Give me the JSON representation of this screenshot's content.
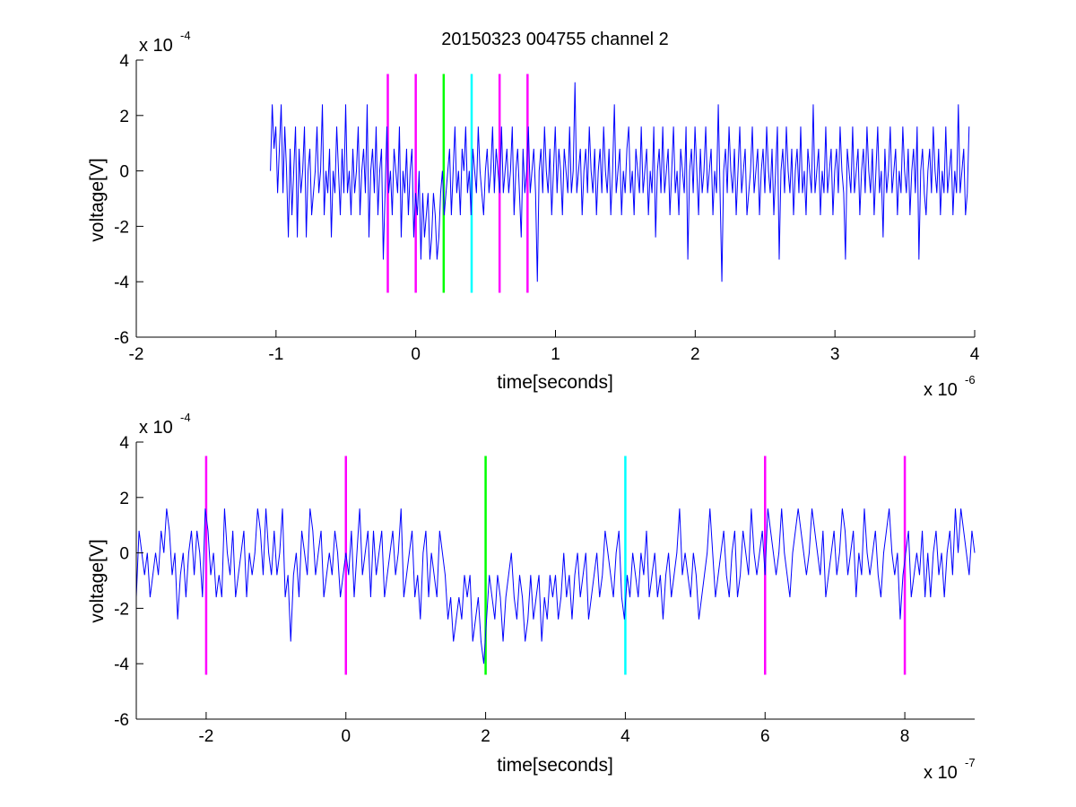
{
  "chart_data": [
    {
      "type": "line",
      "title": "20150323 004755 channel 2",
      "xlabel": "time[seconds]",
      "ylabel": "voltage[V]",
      "x_multiplier": {
        "base": "x 10",
        "exponent": "-6"
      },
      "y_multiplier": {
        "base": "x 10",
        "exponent": "-4"
      },
      "xlim": [
        -2,
        4
      ],
      "ylim": [
        -6,
        4
      ],
      "x_ticks": [
        -2,
        -1,
        0,
        1,
        2,
        3,
        4
      ],
      "y_ticks": [
        -6,
        -4,
        -2,
        0,
        2,
        4
      ],
      "grid": false,
      "series": [
        {
          "color": "#0000ff",
          "x_range": [
            -1.04,
            3.96
          ],
          "quantization_step": 0.8,
          "values": [
            0,
            2.4,
            0.8,
            1.6,
            -0.8,
            0.8,
            2.4,
            -0.8,
            1.6,
            0,
            -2.4,
            0.8,
            -1.6,
            0,
            1.6,
            -2.4,
            0.8,
            -0.8,
            0,
            1.6,
            -2.4,
            0,
            0.8,
            -1.6,
            -0.8,
            0,
            1.6,
            -0.8,
            0,
            2.4,
            -1.6,
            0,
            -0.8,
            0.8,
            -2.4,
            0,
            -0.8,
            1.6,
            0,
            -1.6,
            0.8,
            -0.8,
            2.4,
            -0.8,
            0,
            -1.6,
            0.8,
            -0.8,
            0,
            1.6,
            -1.6,
            0,
            0.8,
            -0.8,
            2.4,
            -2.4,
            0,
            0.8,
            -0.8,
            1.6,
            -1.6,
            0,
            0.8,
            -3.2,
            -0.8,
            1.6,
            -0.8,
            0,
            -1.6,
            0.8,
            0,
            -0.8,
            1.6,
            -2.4,
            0,
            -0.8,
            0.8,
            -1.6,
            0,
            0.8,
            -2.4,
            -0.8,
            -1.6,
            0,
            -3.2,
            -0.8,
            -2.4,
            -1.6,
            -0.8,
            -3.2,
            -2.4,
            -0.8,
            -1.6,
            -3.2,
            -2.4,
            -0.8,
            0,
            -1.6,
            -0.8,
            0,
            0.8,
            -1.6,
            0,
            1.6,
            -0.8,
            0,
            -1.6,
            0.8,
            0,
            1.6,
            -0.8,
            0,
            -1.6,
            0.8,
            0,
            -0.8,
            1.6,
            0,
            -0.8,
            -1.6,
            0,
            0.8,
            -0.8,
            0,
            1.6,
            -0.8,
            0.8,
            0,
            -0.8,
            1.6,
            -0.8,
            0,
            0.8,
            -0.8,
            0,
            1.6,
            -1.6,
            0,
            0.8,
            -0.8,
            -2.4,
            0.8,
            -0.8,
            0,
            1.6,
            -0.8,
            0,
            0.8,
            -0.8,
            -4,
            0,
            0.8,
            -0.8,
            1.6,
            0,
            -0.8,
            0.8,
            -1.6,
            0,
            1.6,
            -0.8,
            0.8,
            0,
            -1.6,
            0.8,
            0,
            -0.8,
            1.6,
            -0.8,
            0,
            3.2,
            -0.8,
            0,
            0.8,
            -1.6,
            0,
            0.8,
            -0.8,
            1.6,
            0,
            -0.8,
            0.8,
            -1.6,
            0,
            0.8,
            -0.8,
            1.6,
            0,
            -0.8,
            0.8,
            -1.6,
            0,
            2.4,
            -0.8,
            0,
            0.8,
            -1.6,
            0,
            -0.8,
            0.8,
            1.6,
            -0.8,
            0,
            -1.6,
            0.8,
            0,
            -0.8,
            1.6,
            -0.8,
            0,
            0.8,
            -1.6,
            0,
            -0.8,
            1.6,
            -2.4,
            0,
            0.8,
            -0.8,
            1.6,
            -0.8,
            0,
            0.8,
            -1.6,
            0,
            1.6,
            -0.8,
            0,
            -1.6,
            0.8,
            0,
            -0.8,
            1.6,
            -3.2,
            0,
            0.8,
            -0.8,
            1.6,
            0,
            -1.6,
            0.8,
            -0.8,
            0,
            1.6,
            -0.8,
            0,
            0.8,
            -1.6,
            0,
            -0.8,
            2.4,
            -0.8,
            -4,
            0,
            0.8,
            -0.8,
            1.6,
            0,
            -0.8,
            0.8,
            -1.6,
            0,
            1.6,
            -0.8,
            0,
            0.8,
            -1.6,
            -0.8,
            0,
            1.6,
            -0.8,
            0,
            0.8,
            -1.6,
            0,
            0.8,
            -0.8,
            1.6,
            0,
            -0.8,
            0.8,
            -1.6,
            0,
            1.6,
            -3.2,
            0,
            0.8,
            -0.8,
            1.6,
            0,
            -0.8,
            0.8,
            -1.6,
            0,
            0.8,
            -0.8,
            1.6,
            -0.8,
            0,
            -1.6,
            0.8,
            0,
            -0.8,
            2.4,
            -0.8,
            0,
            0.8,
            -1.6,
            0,
            -0.8,
            1.6,
            -0.8,
            0,
            0.8,
            -1.6,
            0,
            0.8,
            -0.8,
            1.6,
            0,
            -0.8,
            -3.2,
            0.8,
            0,
            -0.8,
            1.6,
            -0.8,
            0,
            0.8,
            -1.6,
            0,
            0.8,
            -0.8,
            1.6,
            0,
            -0.8,
            0.8,
            -1.6,
            0,
            1.6,
            -0.8,
            0,
            -2.4,
            0.8,
            -0.8,
            0,
            1.6,
            -0.8,
            0,
            0.8,
            -1.6,
            0,
            -0.8,
            1.6,
            0,
            -0.8,
            0.8,
            -1.6,
            0,
            0.8,
            -0.8,
            1.6,
            -3.2,
            0,
            0.8,
            -0.8,
            -1.6,
            0,
            0.8,
            -0.8,
            1.6,
            0,
            -0.8,
            0.8,
            -1.6,
            0,
            -0.8,
            1.6,
            -0.8,
            0,
            0.8,
            -1.6,
            0,
            -0.8,
            2.4,
            -0.8,
            0,
            0.8,
            -1.6,
            -0.8,
            1.6
          ]
        }
      ],
      "markers": [
        {
          "x": -0.2,
          "color": "#ff00ff"
        },
        {
          "x": 0.0,
          "color": "#ff00ff"
        },
        {
          "x": 0.2,
          "color": "#00ff00"
        },
        {
          "x": 0.4,
          "color": "#00ffff"
        },
        {
          "x": 0.6,
          "color": "#ff00ff"
        },
        {
          "x": 0.8,
          "color": "#ff00ff"
        }
      ],
      "marker_yrange": [
        -4.4,
        3.5
      ]
    },
    {
      "type": "line",
      "title": "",
      "xlabel": "time[seconds]",
      "ylabel": "voltage[V]",
      "x_multiplier": {
        "base": "x 10",
        "exponent": "-7"
      },
      "y_multiplier": {
        "base": "x 10",
        "exponent": "-4"
      },
      "xlim": [
        -3,
        9
      ],
      "ylim": [
        -6,
        4
      ],
      "x_ticks": [
        -2,
        0,
        2,
        4,
        6,
        8
      ],
      "y_ticks": [
        -6,
        -4,
        -2,
        0,
        2,
        4
      ],
      "grid": false,
      "series": [
        {
          "color": "#0000ff",
          "x_range": [
            -3,
            9
          ],
          "values": [
            -1.6,
            0.8,
            0,
            -0.8,
            0,
            -1.6,
            -0.8,
            0,
            -0.8,
            0.8,
            0,
            1.6,
            0.8,
            -0.8,
            0,
            -2.4,
            -0.8,
            0,
            -1.6,
            0,
            0.8,
            -0.8,
            0.8,
            0,
            -1.6,
            1.6,
            0.8,
            -0.8,
            0,
            -1.6,
            -0.8,
            -1.6,
            1.6,
            0,
            -0.8,
            0.8,
            -1.6,
            -0.8,
            0,
            0.8,
            -1.6,
            0,
            -0.8,
            0,
            1.6,
            0.8,
            -0.8,
            1.6,
            0,
            -0.8,
            0.8,
            -0.8,
            0,
            1.6,
            -1.6,
            -0.8,
            -3.2,
            -0.8,
            0,
            -1.6,
            0.8,
            0,
            -0.8,
            1.6,
            0.8,
            -0.8,
            0,
            0.8,
            -1.6,
            -0.8,
            0,
            -0.8,
            0.8,
            0,
            -1.6,
            -0.8,
            0,
            -0.8,
            0.8,
            -1.6,
            0,
            1.6,
            -0.8,
            0,
            0.8,
            -1.6,
            0.8,
            -0.8,
            0,
            0.8,
            -1.6,
            -0.8,
            0,
            0.8,
            -0.8,
            0,
            1.6,
            -1.6,
            -0.8,
            0,
            0.8,
            -1.6,
            -0.8,
            -2.4,
            0,
            0.8,
            -1.6,
            0,
            -0.8,
            -1.6,
            0.8,
            0,
            -0.8,
            -2.4,
            -1.6,
            -3.2,
            -2.4,
            -1.6,
            -2.4,
            -0.8,
            -1.6,
            -0.8,
            -3.2,
            -2.4,
            -1.6,
            -3.2,
            -4,
            -2.4,
            -0.8,
            -1.6,
            -2.4,
            -0.8,
            -1.6,
            -3.2,
            -1.6,
            -0.8,
            0,
            -1.6,
            -2.4,
            -0.8,
            -1.6,
            -3.2,
            -2.4,
            -0.8,
            -2.4,
            -1.6,
            -0.8,
            -3.2,
            -1.6,
            -2.4,
            -0.8,
            -1.6,
            -0.8,
            -2.4,
            -1.6,
            0,
            -1.6,
            -0.8,
            -2.4,
            -0.8,
            0,
            -1.6,
            -0.8,
            0,
            -2.4,
            -1.6,
            -0.8,
            0,
            -1.6,
            -0.8,
            0.8,
            0,
            -0.8,
            -1.6,
            0,
            0.8,
            -1.6,
            -2.4,
            -0.8,
            -1.6,
            0,
            -0.8,
            -1.6,
            0,
            -0.8,
            0.8,
            -1.6,
            -0.8,
            0,
            -1.6,
            -0.8,
            -2.4,
            -0.8,
            0,
            -1.6,
            -0.8,
            0,
            1.6,
            -0.8,
            0,
            -0.8,
            -1.6,
            0,
            -0.8,
            -2.4,
            -1.6,
            -0.8,
            0,
            1.6,
            0,
            -1.6,
            -0.8,
            0,
            0.8,
            -0.8,
            -1.6,
            0,
            0.8,
            -1.6,
            -0.8,
            0.8,
            0,
            -0.8,
            1.6,
            0,
            -0.8,
            0,
            0.8,
            -0.8,
            1.6,
            0.8,
            0,
            -0.8,
            0,
            1.6,
            0,
            -0.8,
            -1.6,
            0,
            0.8,
            1.6,
            0.8,
            0,
            -0.8,
            0,
            1.6,
            0.8,
            0,
            -0.8,
            0.8,
            -1.6,
            -0.8,
            0,
            0.8,
            -0.8,
            0,
            1.6,
            0.8,
            -0.8,
            0,
            0.8,
            -1.6,
            0,
            -0.8,
            1.6,
            0,
            -0.8,
            0,
            0.8,
            -0.8,
            -1.6,
            0,
            0.8,
            1.6,
            0,
            -0.8,
            0,
            -2.4,
            -0.8,
            0,
            0.8,
            -1.6,
            -0.8,
            0,
            -0.8,
            0.8,
            -1.6,
            0,
            -1.6,
            0,
            0.8,
            -0.8,
            0,
            -1.6,
            0,
            0.8,
            -0.8,
            1.6,
            0,
            1.6,
            0.8,
            0,
            -0.8,
            0.8,
            0
          ]
        }
      ],
      "markers": [
        {
          "x": -2,
          "color": "#ff00ff"
        },
        {
          "x": 0,
          "color": "#ff00ff"
        },
        {
          "x": 2,
          "color": "#00ff00"
        },
        {
          "x": 4,
          "color": "#00ffff"
        },
        {
          "x": 6,
          "color": "#ff00ff"
        },
        {
          "x": 8,
          "color": "#ff00ff"
        }
      ],
      "marker_yrange": [
        -4.4,
        3.5
      ]
    }
  ]
}
